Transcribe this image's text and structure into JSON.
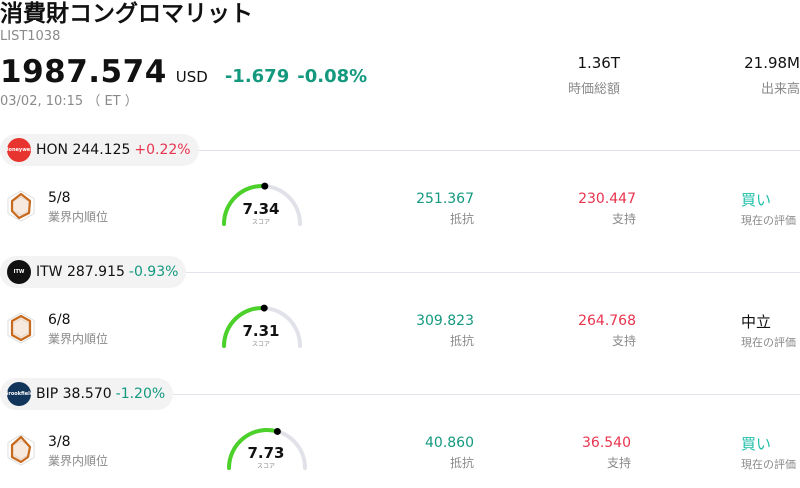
{
  "header": {
    "title": "消費財コングロマリット",
    "code": "LIST1038",
    "price": "1987.574",
    "currency": "USD",
    "change": "-1.679",
    "change_pct": "-0.08%",
    "timestamp": "03/02, 10:15 （ ET ）",
    "market_cap": {
      "value": "1.36T",
      "label": "時価総額"
    },
    "volume": {
      "value": "21.98M",
      "label": "出来高"
    }
  },
  "colors": {
    "positive": "#e8344e",
    "negative": "#14997f",
    "gauge_fill": "#4cd02a",
    "gauge_track": "#e1e1ea",
    "radar": "#c86a1e"
  },
  "stocks": [
    {
      "ticker": "HON",
      "price": "244.125",
      "change_pct": "+0.22%",
      "direction": "up",
      "logo_icon": "honeywell-logo-icon",
      "logo_text": "Honeywell",
      "logo_bg": "#e8342e",
      "rank": "5/8",
      "rank_label": "業界内順位",
      "score": "7.34",
      "score_label": "スコア",
      "resistance": "251.367",
      "resistance_label": "抵抗",
      "support": "230.447",
      "support_label": "支持",
      "rating": "買い",
      "rating_color": "#1fbfa8",
      "rating_label": "現在の評価"
    },
    {
      "ticker": "ITW",
      "price": "287.915",
      "change_pct": "-0.93%",
      "direction": "down",
      "logo_icon": "itw-logo-icon",
      "logo_text": "ITW",
      "logo_bg": "#111111",
      "rank": "6/8",
      "rank_label": "業界内順位",
      "score": "7.31",
      "score_label": "スコア",
      "resistance": "309.823",
      "resistance_label": "抵抗",
      "support": "264.768",
      "support_label": "支持",
      "rating": "中立",
      "rating_color": "#111111",
      "rating_label": "現在の評価"
    },
    {
      "ticker": "BIP",
      "price": "38.570",
      "change_pct": "-1.20%",
      "direction": "down",
      "logo_icon": "brookfield-logo-icon",
      "logo_text": "Brookfield",
      "logo_bg": "#12355b",
      "rank": "3/8",
      "rank_label": "業界内順位",
      "score": "7.73",
      "score_label": "スコア",
      "resistance": "40.860",
      "resistance_label": "抵抗",
      "support": "36.540",
      "support_label": "支持",
      "rating": "買い",
      "rating_color": "#1fbfa8",
      "rating_label": "現在の評価"
    }
  ]
}
